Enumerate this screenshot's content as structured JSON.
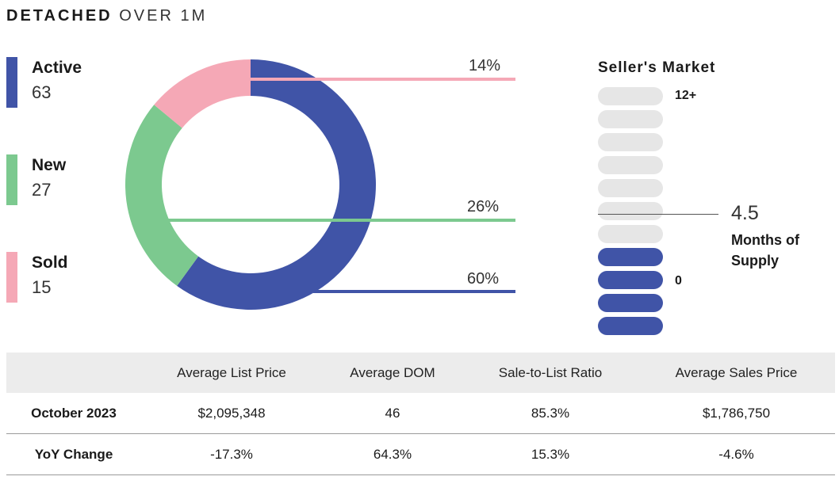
{
  "header": {
    "title_bold": "DETACHED",
    "title_light": "OVER 1M"
  },
  "legend": [
    {
      "label": "Active",
      "value": "63",
      "color": "#4054a7"
    },
    {
      "label": "New",
      "value": "27",
      "color": "#7cc98f"
    },
    {
      "label": "Sold",
      "value": "15",
      "color": "#f5a8b6"
    }
  ],
  "chart_data": {
    "type": "pie",
    "style": "donut",
    "slices": [
      {
        "label": "Active",
        "value": 60,
        "display": "60%",
        "color": "#4054a7"
      },
      {
        "label": "New",
        "value": 26,
        "display": "26%",
        "color": "#7cc98f"
      },
      {
        "label": "Sold",
        "value": 14,
        "display": "14%",
        "color": "#f5a8b6"
      }
    ]
  },
  "gauge": {
    "title": "Seller's Market",
    "top_label": "12+",
    "bottom_label": "0",
    "total_pills": 11,
    "filled_pills": 4,
    "marker_value": "4.5",
    "marker_caption": "Months of Supply",
    "off_color": "#e6e6e6",
    "on_color": "#4054a7"
  },
  "table": {
    "headers": [
      "",
      "Average List Price",
      "Average DOM",
      "Sale-to-List Ratio",
      "Average Sales Price"
    ],
    "rows": [
      [
        "October 2023",
        "$2,095,348",
        "46",
        "85.3%",
        "$1,786,750"
      ],
      [
        "YoY Change",
        "-17.3%",
        "64.3%",
        "15.3%",
        "-4.6%"
      ]
    ]
  }
}
